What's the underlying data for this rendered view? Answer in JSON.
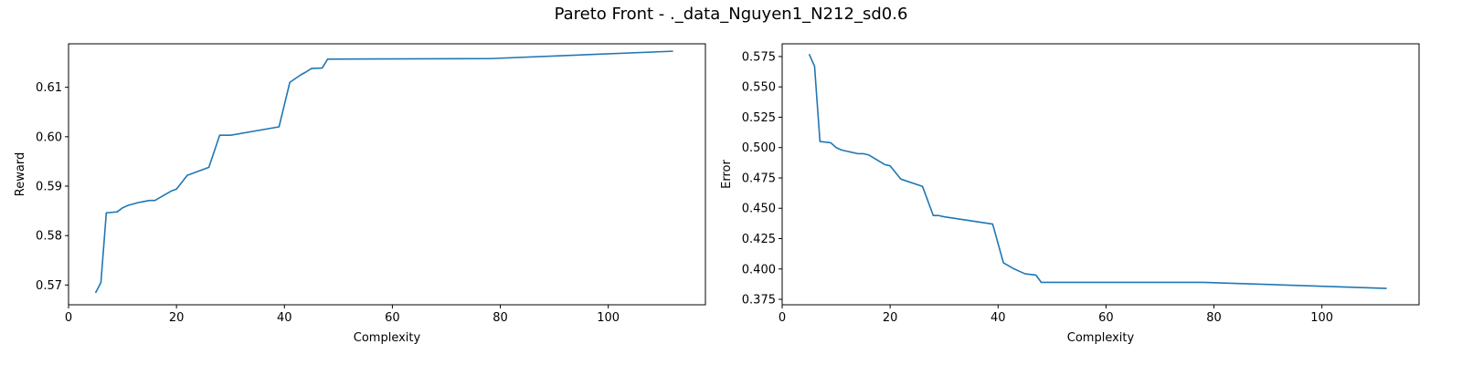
{
  "figure": {
    "suptitle": "Pareto Front - ._data_Nguyen1_N212_sd0.6"
  },
  "chart_data": [
    {
      "type": "line",
      "xlabel": "Complexity",
      "ylabel": "Reward",
      "xlim": [
        0,
        118
      ],
      "ylim": [
        0.566,
        0.6188
      ],
      "xticks": [
        0,
        20,
        40,
        60,
        80,
        100
      ],
      "yticks": [
        0.57,
        0.58,
        0.59,
        0.6,
        0.61
      ],
      "ytick_labels": [
        "0.57",
        "0.58",
        "0.59",
        "0.60",
        "0.61"
      ],
      "grid": false,
      "line_color": "#1f77b4",
      "series": [
        {
          "x": [
            5,
            6,
            7,
            9,
            10,
            11,
            12,
            13,
            14,
            15,
            16,
            19,
            20,
            22,
            26,
            28,
            29,
            30,
            39,
            41,
            43,
            44,
            45,
            47,
            48,
            78,
            112
          ],
          "y": [
            0.5684,
            0.5705,
            0.5846,
            0.5848,
            0.5856,
            0.5861,
            0.5864,
            0.5867,
            0.5869,
            0.5871,
            0.5871,
            0.589,
            0.5894,
            0.5922,
            0.5938,
            0.6003,
            0.6003,
            0.6003,
            0.602,
            0.611,
            0.6125,
            0.6131,
            0.6138,
            0.6139,
            0.6157,
            0.6158,
            0.6173
          ]
        }
      ]
    },
    {
      "type": "line",
      "xlabel": "Complexity",
      "ylabel": "Error",
      "xlim": [
        0,
        118
      ],
      "ylim": [
        0.3705,
        0.5855
      ],
      "xticks": [
        0,
        20,
        40,
        60,
        80,
        100
      ],
      "yticks": [
        0.375,
        0.4,
        0.425,
        0.45,
        0.475,
        0.5,
        0.525,
        0.55,
        0.575
      ],
      "ytick_labels": [
        "0.375",
        "0.400",
        "0.425",
        "0.450",
        "0.475",
        "0.500",
        "0.525",
        "0.550",
        "0.575"
      ],
      "grid": false,
      "line_color": "#1f77b4",
      "series": [
        {
          "x": [
            5,
            6,
            7,
            9,
            10,
            11,
            12,
            13,
            14,
            15,
            16,
            19,
            20,
            22,
            26,
            28,
            29,
            30,
            39,
            41,
            43,
            44,
            45,
            47,
            48,
            78,
            112
          ],
          "y": [
            0.577,
            0.567,
            0.505,
            0.504,
            0.5,
            0.498,
            0.497,
            0.496,
            0.495,
            0.495,
            0.494,
            0.486,
            0.485,
            0.474,
            0.468,
            0.444,
            0.444,
            0.443,
            0.437,
            0.405,
            0.4,
            0.398,
            0.396,
            0.395,
            0.389,
            0.389,
            0.384
          ]
        }
      ]
    }
  ]
}
